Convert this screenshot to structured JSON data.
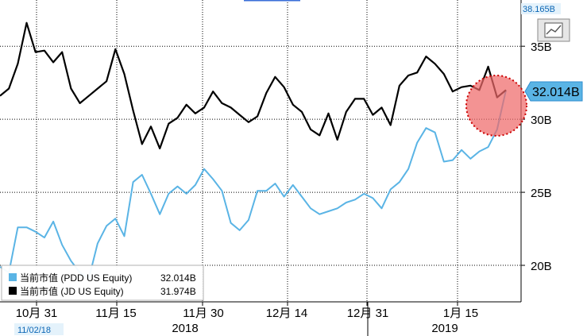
{
  "chart_data": {
    "type": "line",
    "y_unit_suffix": "B",
    "ylim": [
      17.5,
      38.165
    ],
    "y_ticks": [
      20,
      25,
      30,
      35
    ],
    "y_tick_labels": [
      "20B",
      "25B",
      "30B",
      "35B"
    ],
    "y_max_label": "38.165B",
    "grid": true,
    "x_tick_labels": [
      "10月 31",
      "11月 15",
      "11月 30",
      "12月 14",
      "12月 31",
      "1月 15"
    ],
    "x_year_labels": [
      "2018",
      "2019"
    ],
    "cursor_date": "11/02/18",
    "legend_position": "bottom-left",
    "series": [
      {
        "name": "当前市值 (PDD US Equity)",
        "color": "#5ab4e5",
        "last_value_label": "32.014B",
        "values": [
          19.9,
          19.5,
          22.6,
          22.6,
          22.3,
          21.9,
          23.0,
          21.4,
          20.3,
          19.5,
          19.1,
          21.5,
          22.7,
          23.2,
          22.0,
          25.7,
          26.2,
          24.9,
          23.5,
          24.9,
          25.4,
          24.9,
          25.5,
          26.6,
          25.9,
          25.1,
          22.9,
          22.4,
          23.1,
          25.1,
          25.1,
          25.6,
          24.7,
          25.5,
          24.7,
          23.9,
          23.5,
          23.7,
          23.9,
          24.3,
          24.5,
          24.9,
          24.6,
          23.9,
          25.2,
          25.7,
          26.6,
          28.4,
          29.4,
          29.1,
          27.1,
          27.2,
          27.9,
          27.3,
          27.8,
          28.1,
          29.3,
          32.0
        ]
      },
      {
        "name": "当前市值 (JD US Equity)",
        "color": "#000000",
        "last_value_label": "31.974B",
        "values": [
          31.6,
          32.1,
          33.8,
          36.6,
          34.6,
          34.7,
          33.9,
          34.6,
          32.1,
          31.1,
          31.6,
          32.1,
          32.6,
          34.8,
          33.1,
          30.6,
          28.3,
          29.5,
          28.0,
          29.7,
          30.1,
          31.0,
          30.4,
          30.8,
          31.9,
          31.1,
          30.8,
          30.3,
          29.8,
          30.2,
          31.8,
          32.9,
          32.2,
          31.0,
          30.5,
          29.3,
          28.9,
          30.4,
          28.6,
          30.5,
          31.4,
          31.4,
          30.3,
          30.8,
          29.6,
          32.3,
          33.0,
          33.2,
          34.3,
          33.8,
          33.1,
          31.9,
          32.2,
          32.3,
          32.0,
          33.6,
          31.5,
          32.0
        ]
      }
    ]
  }
}
